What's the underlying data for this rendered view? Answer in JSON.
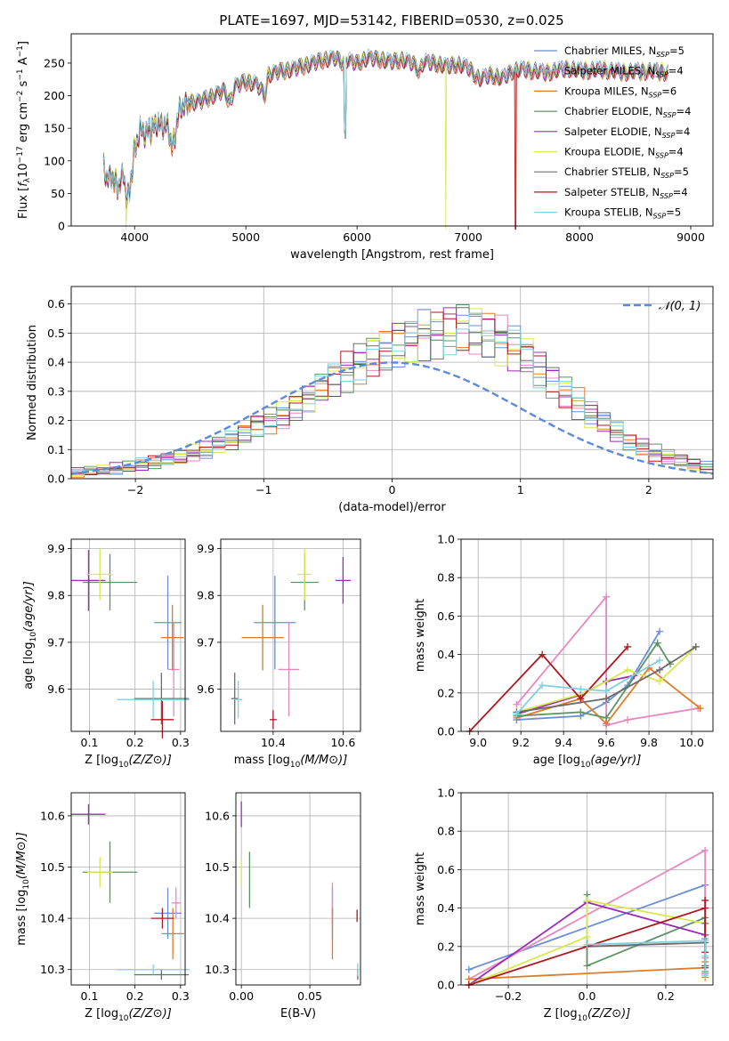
{
  "title": "PLATE=1697, MJD=53142, FIBERID=0530, z=0.025",
  "colors": {
    "cm": "#6a8fd6",
    "sm": "#e887bf",
    "km": "#e07b28",
    "ce": "#5e9462",
    "se": "#9a2bb8",
    "ke": "#d8e84e",
    "cs": "#6b6b6b",
    "ss": "#b0171f",
    "ks": "#7fd0e0",
    "gauss": "#5b8bd9",
    "grid": "#b0b0b0"
  },
  "chart_data": [
    {
      "id": "spectrum",
      "type": "line",
      "xlabel": "wavelength [Angstrom, rest frame]",
      "ylabel": "Flux [f_λ 10^-17 erg cm^-2 s^-1 A^-1]",
      "xlim": [
        3430,
        9200
      ],
      "ylim": [
        0,
        295
      ],
      "xticks": [
        4000,
        5000,
        6000,
        7000,
        8000,
        9000
      ],
      "yticks": [
        0,
        50,
        100,
        150,
        200,
        250
      ],
      "grid": false,
      "legend_position": "top-right",
      "legend": [
        {
          "key": "cm",
          "base": "Chabrier MILES, N",
          "sub": "SSP",
          "val": "=5"
        },
        {
          "key": "sm",
          "base": "Salpeter MILES, N",
          "sub": "SSP",
          "val": "=4"
        },
        {
          "key": "km",
          "base": "Kroupa MILES, N",
          "sub": "SSP",
          "val": "=6"
        },
        {
          "key": "ce",
          "base": "Chabrier ELODIE, N",
          "sub": "SSP",
          "val": "=4"
        },
        {
          "key": "se",
          "base": "Salpeter ELODIE, N",
          "sub": "SSP",
          "val": "=4"
        },
        {
          "key": "ke",
          "base": "Kroupa ELODIE, N",
          "sub": "SSP",
          "val": "=4"
        },
        {
          "key": "cs",
          "base": "Chabrier STELIB, N",
          "sub": "SSP",
          "val": "=5"
        },
        {
          "key": "ss",
          "base": "Salpeter STELIB, N",
          "sub": "SSP",
          "val": "=4"
        },
        {
          "key": "ks",
          "base": "Kroupa STELIB, N",
          "sub": "SSP",
          "val": "=5"
        }
      ],
      "continuum": [
        [
          3720,
          92
        ],
        [
          3750,
          70
        ],
        [
          3800,
          76
        ],
        [
          3850,
          62
        ],
        [
          3900,
          80
        ],
        [
          3930,
          40
        ],
        [
          3960,
          55
        ],
        [
          3990,
          110
        ],
        [
          4050,
          148
        ],
        [
          4100,
          140
        ],
        [
          4200,
          158
        ],
        [
          4300,
          150
        ],
        [
          4340,
          120
        ],
        [
          4400,
          178
        ],
        [
          4500,
          190
        ],
        [
          4600,
          192
        ],
        [
          4700,
          200
        ],
        [
          4800,
          208
        ],
        [
          4860,
          190
        ],
        [
          4900,
          215
        ],
        [
          5000,
          222
        ],
        [
          5100,
          218
        ],
        [
          5170,
          200
        ],
        [
          5200,
          232
        ],
        [
          5300,
          238
        ],
        [
          5400,
          240
        ],
        [
          5500,
          245
        ],
        [
          5600,
          250
        ],
        [
          5700,
          255
        ],
        [
          5800,
          258
        ],
        [
          5890,
          250
        ],
        [
          5900,
          255
        ],
        [
          6000,
          250
        ],
        [
          6100,
          258
        ],
        [
          6200,
          256
        ],
        [
          6300,
          252
        ],
        [
          6400,
          255
        ],
        [
          6500,
          250
        ],
        [
          6563,
          238
        ],
        [
          6600,
          252
        ],
        [
          6700,
          250
        ],
        [
          6800,
          245
        ],
        [
          6900,
          248
        ],
        [
          7000,
          243
        ],
        [
          7100,
          225
        ],
        [
          7200,
          232
        ],
        [
          7300,
          226
        ],
        [
          7400,
          238
        ],
        [
          7500,
          240
        ],
        [
          7700,
          235
        ],
        [
          7900,
          242
        ],
        [
          8000,
          238
        ],
        [
          8200,
          240
        ],
        [
          8400,
          236
        ],
        [
          8600,
          238
        ],
        [
          8800,
          236
        ]
      ],
      "features": [
        {
          "x": 5890,
          "y": 155
        },
        {
          "x": 5895,
          "y": 135
        }
      ],
      "dropouts": [
        {
          "key": "ke",
          "x": 3925
        },
        {
          "key": "ke",
          "x": 6800
        },
        {
          "key": "km",
          "x": 7420
        },
        {
          "key": "ss",
          "x": 7425
        }
      ]
    },
    {
      "id": "residuals",
      "type": "histogram",
      "xlabel": "(data-model)/error",
      "ylabel": "Normed distribution",
      "xlim": [
        -2.5,
        2.5
      ],
      "ylim": [
        0,
        0.66
      ],
      "xticks": [
        -2,
        -1,
        0,
        1,
        2
      ],
      "yticks": [
        0.0,
        0.1,
        0.2,
        0.3,
        0.4,
        0.5,
        0.6
      ],
      "grid": true,
      "legend_position": "top-right",
      "gauss_label": "𝒩(0, 1)",
      "bin_width": 0.1,
      "bin_start": -2.5,
      "base_heights": [
        0.02,
        0.025,
        0.03,
        0.035,
        0.04,
        0.048,
        0.055,
        0.065,
        0.075,
        0.09,
        0.1,
        0.12,
        0.13,
        0.15,
        0.18,
        0.2,
        0.22,
        0.25,
        0.28,
        0.31,
        0.34,
        0.37,
        0.4,
        0.43,
        0.45,
        0.47,
        0.48,
        0.5,
        0.5,
        0.52,
        0.53,
        0.52,
        0.5,
        0.48,
        0.45,
        0.42,
        0.38,
        0.34,
        0.3,
        0.26,
        0.22,
        0.19,
        0.16,
        0.13,
        0.11,
        0.09,
        0.075,
        0.06,
        0.048,
        0.038
      ]
    },
    {
      "id": "age_vs_z",
      "type": "errorbar",
      "xlabel": "Z [log10(Z/Z⊙)]",
      "ylabel": "age [log10(age/yr)]",
      "xlim": [
        0.06,
        0.31
      ],
      "ylim": [
        9.51,
        9.92
      ],
      "xticks": [
        0.1,
        0.2,
        0.3
      ],
      "yticks": [
        9.6,
        9.7,
        9.8,
        9.9
      ],
      "grid": true,
      "points": [
        {
          "key": "cm",
          "x": 0.272,
          "y": 9.742,
          "xerr": 0.03,
          "yerr": 0.1
        },
        {
          "key": "sm",
          "x": 0.285,
          "y": 9.642,
          "xerr": 0.012,
          "yerr": 0.1
        },
        {
          "key": "km",
          "x": 0.282,
          "y": 9.71,
          "xerr": 0.025,
          "yerr": 0.07
        },
        {
          "key": "ce",
          "x": 0.145,
          "y": 9.828,
          "xerr": 0.06,
          "yerr": 0.06
        },
        {
          "key": "se",
          "x": 0.098,
          "y": 9.832,
          "xerr": 0.037,
          "yerr": 0.065
        },
        {
          "key": "ke",
          "x": 0.123,
          "y": 9.845,
          "xerr": 0.028,
          "yerr": 0.055
        },
        {
          "key": "cs",
          "x": 0.258,
          "y": 9.58,
          "xerr": 0.06,
          "yerr": 0.055
        },
        {
          "key": "ss",
          "x": 0.26,
          "y": 9.535,
          "xerr": 0.025,
          "yerr": 0.04
        },
        {
          "key": "ks",
          "x": 0.24,
          "y": 9.578,
          "xerr": 0.08,
          "yerr": 0.04
        }
      ]
    },
    {
      "id": "age_vs_mass",
      "type": "errorbar",
      "xlabel": "mass [log10(M/M⊙)]",
      "ylabel": "",
      "xlim": [
        10.25,
        10.65
      ],
      "ylim": [
        9.51,
        9.92
      ],
      "xticks": [
        10.4,
        10.6
      ],
      "yticks": [
        9.6,
        9.7,
        9.8,
        9.9
      ],
      "grid": true,
      "points": [
        {
          "key": "cm",
          "x": 10.405,
          "y": 9.742,
          "xerr": 0.06,
          "yerr": 0.1
        },
        {
          "key": "sm",
          "x": 10.445,
          "y": 9.642,
          "xerr": 0.03,
          "yerr": 0.1
        },
        {
          "key": "km",
          "x": 10.37,
          "y": 9.71,
          "xerr": 0.06,
          "yerr": 0.07
        },
        {
          "key": "ce",
          "x": 10.49,
          "y": 9.828,
          "xerr": 0.04,
          "yerr": 0.06
        },
        {
          "key": "se",
          "x": 10.6,
          "y": 9.832,
          "xerr": 0.022,
          "yerr": 0.05
        },
        {
          "key": "ke",
          "x": 10.49,
          "y": 9.845,
          "xerr": 0.02,
          "yerr": 0.055
        },
        {
          "key": "cs",
          "x": 10.29,
          "y": 9.58,
          "xerr": 0.01,
          "yerr": 0.055
        },
        {
          "key": "ss",
          "x": 10.4,
          "y": 9.535,
          "xerr": 0.01,
          "yerr": 0.02
        },
        {
          "key": "ks",
          "x": 10.3,
          "y": 9.578,
          "xerr": 0.012,
          "yerr": 0.04
        }
      ]
    },
    {
      "id": "weight_vs_age",
      "type": "line",
      "xlabel": "age [log10(age/yr)]",
      "ylabel": "mass weight",
      "xlim": [
        8.92,
        10.1
      ],
      "ylim": [
        0,
        1.0
      ],
      "xticks": [
        9.0,
        9.2,
        9.4,
        9.6,
        9.8,
        10.0
      ],
      "yticks": [
        0.0,
        0.2,
        0.4,
        0.6,
        0.8,
        1.0
      ],
      "grid": true,
      "series": [
        {
          "key": "cm",
          "x": [
            9.18,
            9.48,
            9.6,
            9.7,
            9.85
          ],
          "y": [
            0.06,
            0.08,
            0.15,
            0.24,
            0.52
          ]
        },
        {
          "key": "sm",
          "x": [
            9.18,
            9.6,
            9.6,
            9.7,
            10.03
          ],
          "y": [
            0.14,
            0.7,
            0.03,
            0.06,
            0.12
          ]
        },
        {
          "key": "km",
          "x": [
            9.18,
            9.48,
            9.6,
            9.8,
            10.04
          ],
          "y": [
            0.07,
            0.17,
            0.04,
            0.33,
            0.12
          ]
        },
        {
          "key": "ce",
          "x": [
            9.18,
            9.48,
            9.6,
            9.84,
            9.9
          ],
          "y": [
            0.08,
            0.1,
            0.07,
            0.46,
            0.35
          ]
        },
        {
          "key": "se",
          "x": [
            9.18,
            9.48,
            9.6,
            9.73
          ],
          "y": [
            0.09,
            0.19,
            0.26,
            0.29
          ]
        },
        {
          "key": "ke",
          "x": [
            9.18,
            9.5,
            9.7,
            9.85,
            10.02
          ],
          "y": [
            0.1,
            0.2,
            0.32,
            0.26,
            0.44
          ]
        },
        {
          "key": "cs",
          "x": [
            9.18,
            9.6,
            9.85,
            10.02
          ],
          "y": [
            0.1,
            0.17,
            0.32,
            0.44
          ]
        },
        {
          "key": "ss",
          "x": [
            8.96,
            9.3,
            9.48,
            9.7
          ],
          "y": [
            0.0,
            0.4,
            0.17,
            0.44
          ]
        },
        {
          "key": "ks",
          "x": [
            9.18,
            9.3,
            9.48,
            9.6,
            9.85
          ],
          "y": [
            0.09,
            0.24,
            0.22,
            0.21,
            0.37
          ]
        }
      ]
    },
    {
      "id": "mass_vs_z",
      "type": "errorbar",
      "xlabel": "Z [log10(Z/Z⊙)]",
      "ylabel": "mass [log10(M/M⊙)]",
      "xlim": [
        0.06,
        0.31
      ],
      "ylim": [
        10.27,
        10.645
      ],
      "xticks": [
        0.1,
        0.2,
        0.3
      ],
      "yticks": [
        10.3,
        10.4,
        10.5,
        10.6
      ],
      "grid": true,
      "points": [
        {
          "key": "cm",
          "x": 0.272,
          "y": 10.41,
          "xerr": 0.03,
          "yerr": 0.05
        },
        {
          "key": "sm",
          "x": 0.29,
          "y": 10.43,
          "xerr": 0.01,
          "yerr": 0.03
        },
        {
          "key": "km",
          "x": 0.283,
          "y": 10.37,
          "xerr": 0.025,
          "yerr": 0.05
        },
        {
          "key": "ce",
          "x": 0.145,
          "y": 10.49,
          "xerr": 0.06,
          "yerr": 0.06
        },
        {
          "key": "se",
          "x": 0.098,
          "y": 10.603,
          "xerr": 0.037,
          "yerr": 0.02
        },
        {
          "key": "ke",
          "x": 0.123,
          "y": 10.49,
          "xerr": 0.028,
          "yerr": 0.03
        },
        {
          "key": "cs",
          "x": 0.258,
          "y": 10.29,
          "xerr": 0.06,
          "yerr": 0.01
        },
        {
          "key": "ss",
          "x": 0.26,
          "y": 10.4,
          "xerr": 0.025,
          "yerr": 0.02
        },
        {
          "key": "ks",
          "x": 0.24,
          "y": 10.3,
          "xerr": 0.08,
          "yerr": 0.01
        }
      ]
    },
    {
      "id": "mass_vs_ebv",
      "type": "errorbar",
      "xlabel": "E(B-V)",
      "ylabel": "",
      "xlim": [
        -0.004,
        0.087
      ],
      "ylim": [
        10.27,
        10.645
      ],
      "xticks": [
        0.0,
        0.05
      ],
      "yticks": [
        10.3,
        10.4,
        10.5,
        10.6
      ],
      "grid": true,
      "points": [
        {
          "key": "cm",
          "x": 0.0665,
          "y": 10.41,
          "xerr": 0,
          "yerr": 0.05
        },
        {
          "key": "sm",
          "x": 0.0665,
          "y": 10.43,
          "xerr": 0,
          "yerr": 0.04
        },
        {
          "key": "km",
          "x": 0.0665,
          "y": 10.37,
          "xerr": 0,
          "yerr": 0.05
        },
        {
          "key": "ce",
          "x": 0.006,
          "y": 10.475,
          "xerr": 0,
          "yerr": 0.055
        },
        {
          "key": "se",
          "x": 0.0,
          "y": 10.603,
          "xerr": 0,
          "yerr": 0.025
        },
        {
          "key": "ke",
          "x": 0.0,
          "y": 10.49,
          "xerr": 0,
          "yerr": 0.025
        },
        {
          "key": "cs",
          "x": 0.085,
          "y": 10.29,
          "xerr": 0,
          "yerr": 0.01
        },
        {
          "key": "ss",
          "x": 0.0845,
          "y": 10.405,
          "xerr": 0,
          "yerr": 0.012
        },
        {
          "key": "ks",
          "x": 0.085,
          "y": 10.3,
          "xerr": 0,
          "yerr": 0.012
        }
      ]
    },
    {
      "id": "weight_vs_z",
      "type": "line",
      "xlabel": "Z [log10(Z/Z⊙)]",
      "ylabel": "mass weight",
      "xlim": [
        -0.32,
        0.32
      ],
      "ylim": [
        0,
        1.0
      ],
      "xticks": [
        -0.2,
        0.0,
        0.2
      ],
      "yticks": [
        0.0,
        0.2,
        0.4,
        0.6,
        0.8,
        1.0
      ],
      "grid": true,
      "series": [
        {
          "key": "cm",
          "x": [
            -0.3,
            0.3,
            0.3,
            0.3
          ],
          "y": [
            0.08,
            0.52,
            0.24,
            0.06
          ]
        },
        {
          "key": "sm",
          "x": [
            -0.3,
            0.3,
            0.3,
            0.3
          ],
          "y": [
            0.03,
            0.7,
            0.14,
            0.06
          ]
        },
        {
          "key": "km",
          "x": [
            -0.3,
            0.3,
            0.3,
            0.3
          ],
          "y": [
            0.03,
            0.09,
            0.12,
            0.04
          ]
        },
        {
          "key": "ce",
          "x": [
            0.0,
            0.0,
            0.3,
            0.3
          ],
          "y": [
            0.47,
            0.1,
            0.35,
            0.07
          ]
        },
        {
          "key": "se",
          "x": [
            -0.3,
            0.0,
            0.3,
            0.3
          ],
          "y": [
            0.0,
            0.43,
            0.26,
            0.09
          ]
        },
        {
          "key": "ke",
          "x": [
            -0.3,
            0.0,
            0.0,
            0.3,
            0.3
          ],
          "y": [
            0.0,
            0.25,
            0.44,
            0.32,
            0.1
          ]
        },
        {
          "key": "cs",
          "x": [
            0.0,
            0.3,
            0.3,
            0.3
          ],
          "y": [
            0.2,
            0.22,
            0.32,
            0.1
          ]
        },
        {
          "key": "ss",
          "x": [
            -0.3,
            0.3,
            0.3,
            0.3
          ],
          "y": [
            0.0,
            0.4,
            0.44,
            0.17
          ]
        },
        {
          "key": "ks",
          "x": [
            0.0,
            0.3,
            0.3,
            0.3
          ],
          "y": [
            0.21,
            0.23,
            0.15,
            0.05
          ]
        }
      ]
    }
  ]
}
